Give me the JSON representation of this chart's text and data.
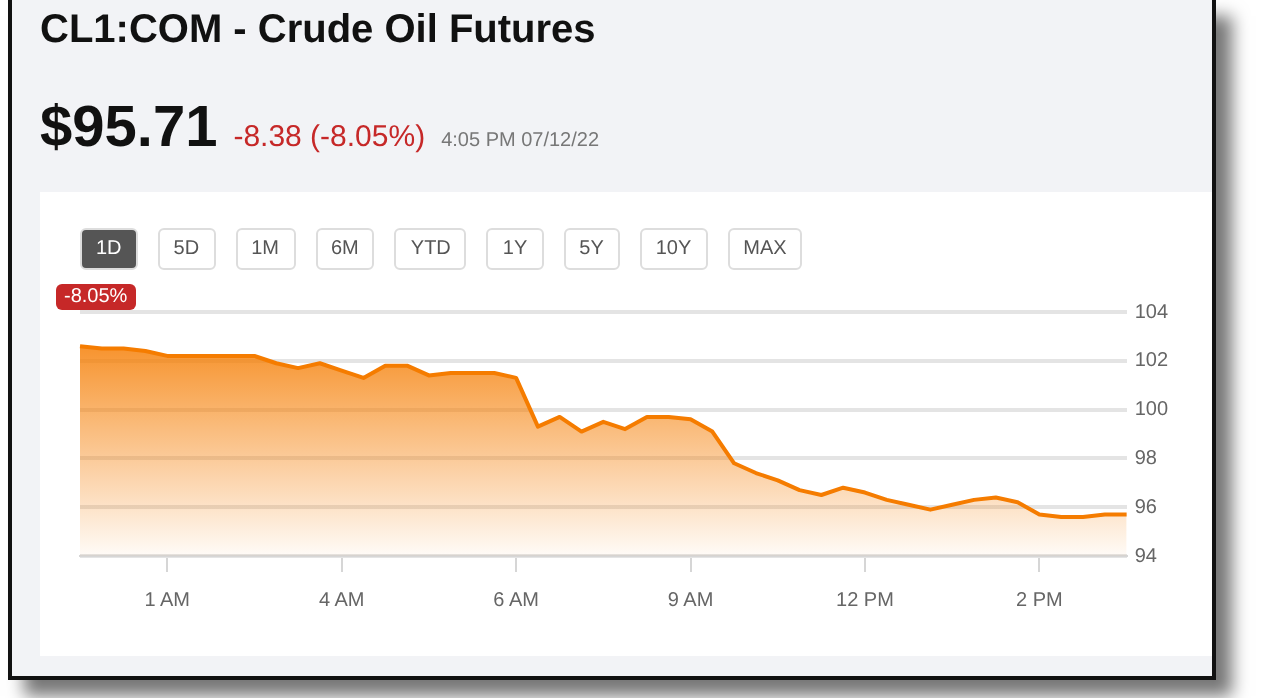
{
  "chart_data": {
    "type": "area",
    "title": "CL1:COM  -  Crude Oil Futures",
    "subtitle": "$95.71",
    "annotations": [
      "-8.38 (-8.05%)",
      "4:05 PM 07/12/22",
      "1D",
      "5D",
      "1M",
      "6M",
      "YTD",
      "1Y",
      "5Y",
      "10Y",
      "MAX",
      "-8.05%"
    ],
    "categories": [
      null,
      null,
      null,
      null,
      "1 AM",
      null,
      null,
      null,
      null,
      null,
      null,
      null,
      "4 AM",
      null,
      null,
      null,
      null,
      null,
      null,
      null,
      "6 AM",
      null,
      null,
      null,
      null,
      null,
      null,
      null,
      "9 AM",
      null,
      null,
      null,
      null,
      null,
      null,
      null,
      "12 PM",
      null,
      null,
      null,
      null,
      null,
      null,
      null,
      "2 PM",
      null,
      null,
      null,
      null
    ],
    "series": [
      {
        "color": "#f57c00",
        "values": [
          102.6,
          102.5,
          102.5,
          102.4,
          102.2,
          102.2,
          102.2,
          102.2,
          102.2,
          101.9,
          101.7,
          101.9,
          101.6,
          101.3,
          101.8,
          101.8,
          101.4,
          101.5,
          101.5,
          101.5,
          101.3,
          99.3,
          99.7,
          99.1,
          99.5,
          99.2,
          99.7,
          99.7,
          99.6,
          99.1,
          97.8,
          97.4,
          97.1,
          96.7,
          96.5,
          96.8,
          96.6,
          96.3,
          96.1,
          95.9,
          96.1,
          96.3,
          96.4,
          96.2,
          95.7,
          95.6,
          95.6,
          95.7,
          95.7
        ]
      }
    ],
    "ylim": [
      94,
      104
    ],
    "yticks": [
      94,
      96,
      98,
      100,
      102,
      104
    ],
    "grid": "y",
    "legend": false
  }
}
